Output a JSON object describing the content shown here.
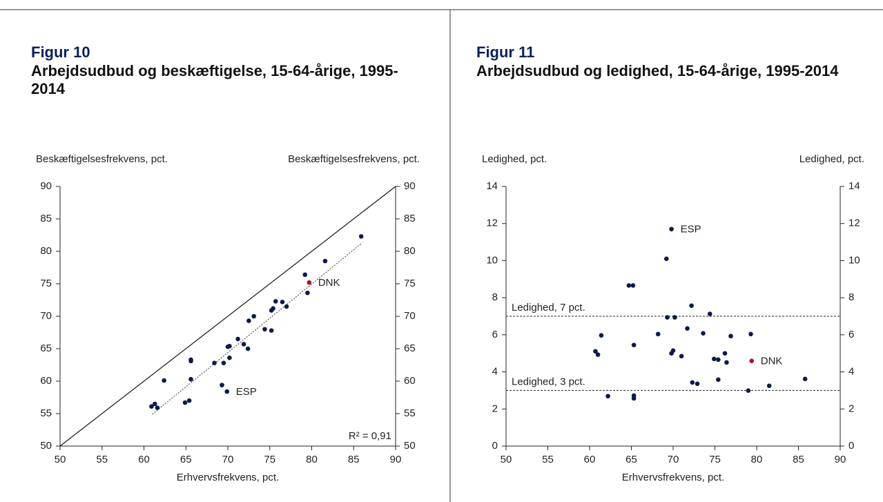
{
  "chart_data": [
    {
      "type": "scatter",
      "figure": "Figur 10",
      "title": "Arbejdsudbud og beskæftigelse, 15-64-årige, 1995-2014",
      "xlabel": "Erhvervsfrekvens, pct.",
      "ylabel": "Beskæftigelsesfrekvens, pct.",
      "xlim": [
        50,
        90
      ],
      "xticks": [
        50,
        55,
        60,
        65,
        70,
        75,
        80,
        85,
        90
      ],
      "ylim": [
        50,
        90
      ],
      "yticks": [
        50,
        55,
        60,
        65,
        70,
        75,
        80,
        85,
        90
      ],
      "color": "#0d1a4a",
      "x": [
        85.9,
        81.6,
        79.2,
        79.7,
        79.5,
        75.7,
        76.5,
        77.0,
        75.2,
        75.4,
        73.1,
        72.5,
        74.4,
        75.2,
        71.2,
        71.9,
        70.0,
        70.2,
        72.4,
        70.2,
        65.6,
        65.6,
        68.4,
        69.5,
        62.4,
        65.6,
        69.3,
        69.9,
        65.4,
        64.9,
        60.9,
        61.3,
        61.6
      ],
      "y": [
        82.3,
        78.5,
        76.4,
        75.2,
        73.6,
        72.3,
        72.2,
        71.5,
        70.9,
        71.2,
        70.0,
        69.3,
        68.0,
        67.8,
        66.5,
        65.7,
        65.3,
        65.4,
        65.0,
        63.6,
        63.3,
        63.1,
        62.8,
        62.8,
        60.1,
        60.3,
        59.4,
        58.4,
        57.0,
        56.7,
        56.1,
        56.5,
        55.9
      ],
      "highlight": {
        "index": 3,
        "color": "#a3162e"
      },
      "annotations": [
        {
          "text": "DNK",
          "index": 3
        },
        {
          "text": "ESP",
          "index": 27
        }
      ],
      "r2_label": "R² = 0,91",
      "reference_line": {
        "x": [
          50,
          90
        ],
        "y": [
          50,
          90
        ]
      },
      "trendline": {
        "x": [
          61.0,
          86.0
        ],
        "y": [
          54.9,
          81.3
        ]
      }
    },
    {
      "type": "scatter",
      "figure": "Figur 11",
      "title": "Arbejdsudbud og ledighed, 15-64-årige, 1995-2014",
      "xlabel": "Erhvervsfrekvens, pct.",
      "ylabel": "Ledighed, pct.",
      "xlim": [
        50,
        90
      ],
      "xticks": [
        50,
        55,
        60,
        65,
        70,
        75,
        80,
        85,
        90
      ],
      "ylim": [
        0,
        14
      ],
      "yticks": [
        0,
        2,
        4,
        6,
        8,
        10,
        12,
        14
      ],
      "color": "#0d1a4a",
      "x": [
        69.8,
        69.2,
        64.7,
        65.2,
        72.2,
        74.4,
        69.3,
        70.2,
        61.4,
        68.2,
        71.7,
        73.6,
        76.9,
        79.3,
        65.3,
        60.7,
        61.0,
        70.0,
        69.8,
        71.0,
        74.9,
        75.4,
        76.2,
        76.4,
        79.4,
        72.3,
        72.9,
        75.4,
        81.5,
        85.8,
        79.0,
        62.2,
        65.3,
        65.3
      ],
      "y": [
        11.7,
        10.1,
        8.66,
        8.66,
        7.57,
        7.13,
        6.94,
        6.94,
        5.97,
        6.04,
        6.34,
        6.08,
        5.93,
        6.04,
        5.45,
        5.11,
        4.93,
        5.15,
        5.0,
        4.85,
        4.7,
        4.66,
        5.0,
        4.51,
        4.59,
        3.43,
        3.36,
        3.58,
        3.25,
        3.62,
        2.99,
        2.69,
        2.72,
        2.57
      ],
      "highlight": {
        "index": 24,
        "color": "#a3162e"
      },
      "annotations": [
        {
          "text": "ESP",
          "index": 0
        },
        {
          "text": "DNK",
          "index": 24
        }
      ],
      "hlines": [
        {
          "value": 7,
          "label": "Ledighed, 7 pct."
        },
        {
          "value": 3,
          "label": "Ledighed, 3 pct."
        }
      ]
    }
  ]
}
